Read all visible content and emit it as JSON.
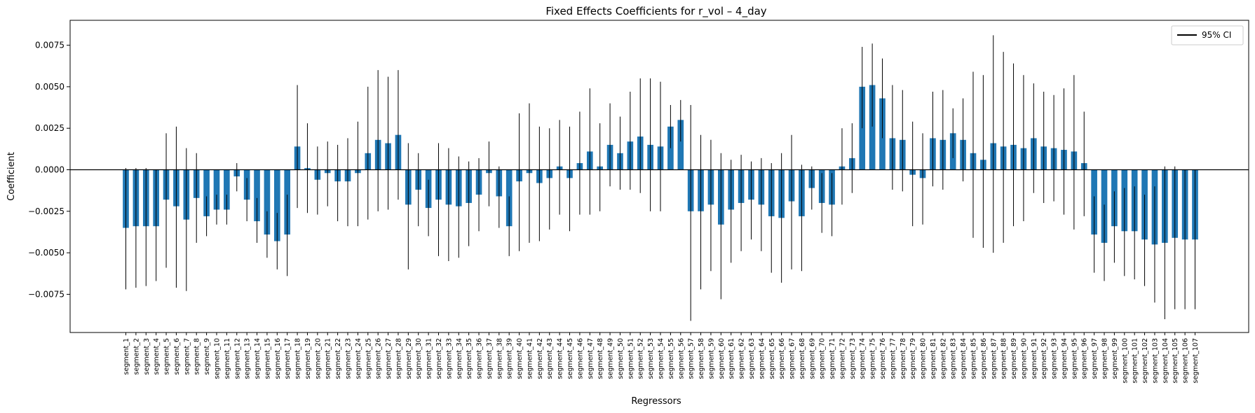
{
  "chart_data": {
    "type": "bar",
    "title": "Fixed Effects Coefficients for r_vol – 4_day",
    "xlabel": "Regressors",
    "ylabel": "Coefficient",
    "ylim": [
      -0.0098,
      0.009
    ],
    "yticks": [
      -0.0075,
      -0.005,
      -0.0025,
      0.0,
      0.0025,
      0.005,
      0.0075
    ],
    "ytick_labels": [
      "−0.0075",
      "−0.0050",
      "−0.0025",
      "0.0000",
      "0.0025",
      "0.0050",
      "0.0075"
    ],
    "legend": {
      "label": "95% CI",
      "position": "top-right"
    },
    "bar_color": "#1f77b4",
    "errorbar_color": "#000000",
    "grid": false,
    "categories": [
      "segment_1",
      "segment_2",
      "segment_3",
      "segment_4",
      "segment_5",
      "segment_6",
      "segment_7",
      "segment_8",
      "segment_9",
      "segment_10",
      "segment_11",
      "segment_12",
      "segment_13",
      "segment_14",
      "segment_15",
      "segment_16",
      "segment_17",
      "segment_18",
      "segment_19",
      "segment_20",
      "segment_21",
      "segment_22",
      "segment_23",
      "segment_24",
      "segment_25",
      "segment_26",
      "segment_27",
      "segment_28",
      "segment_29",
      "segment_30",
      "segment_31",
      "segment_32",
      "segment_33",
      "segment_34",
      "segment_35",
      "segment_36",
      "segment_37",
      "segment_38",
      "segment_39",
      "segment_40",
      "segment_41",
      "segment_42",
      "segment_43",
      "segment_44",
      "segment_45",
      "segment_46",
      "segment_47",
      "segment_48",
      "segment_49",
      "segment_50",
      "segment_51",
      "segment_52",
      "segment_53",
      "segment_54",
      "segment_55",
      "segment_56",
      "segment_57",
      "segment_58",
      "segment_59",
      "segment_60",
      "segment_61",
      "segment_62",
      "segment_63",
      "segment_64",
      "segment_65",
      "segment_66",
      "segment_67",
      "segment_68",
      "segment_69",
      "segment_70",
      "segment_71",
      "segment_72",
      "segment_73",
      "segment_74",
      "segment_75",
      "segment_76",
      "segment_77",
      "segment_78",
      "segment_79",
      "segment_80",
      "segment_81",
      "segment_82",
      "segment_83",
      "segment_84",
      "segment_85",
      "segment_86",
      "segment_87",
      "segment_88",
      "segment_89",
      "segment_90",
      "segment_91",
      "segment_92",
      "segment_93",
      "segment_94",
      "segment_95",
      "segment_96",
      "segment_97",
      "segment_98",
      "segment_99",
      "segment_100",
      "segment_101",
      "segment_102",
      "segment_103",
      "segment_104",
      "segment_105",
      "segment_106",
      "segment_107"
    ],
    "values": [
      -0.0035,
      -0.0034,
      -0.0034,
      -0.0034,
      -0.0018,
      -0.0022,
      -0.003,
      -0.0017,
      -0.0028,
      -0.0024,
      -0.0024,
      -0.0004,
      -0.0018,
      -0.0031,
      -0.0039,
      -0.0043,
      -0.0039,
      0.0014,
      0.0001,
      -0.0006,
      -0.0002,
      -0.0007,
      -0.0007,
      -0.0002,
      0.001,
      0.0018,
      0.0016,
      0.0021,
      -0.0021,
      -0.0012,
      -0.0023,
      -0.0018,
      -0.0021,
      -0.0022,
      -0.002,
      -0.0015,
      -0.0002,
      -0.0016,
      -0.0034,
      -0.0007,
      -0.0002,
      -0.0008,
      -0.0005,
      0.0002,
      -0.0005,
      0.0004,
      0.0011,
      0.0002,
      0.0015,
      0.001,
      0.0017,
      0.002,
      0.0015,
      0.0014,
      0.0026,
      0.003,
      -0.0025,
      -0.0025,
      -0.0021,
      -0.0033,
      -0.0024,
      -0.002,
      -0.0018,
      -0.0021,
      -0.0028,
      -0.0029,
      -0.0019,
      -0.0028,
      -0.0011,
      -0.002,
      -0.0021,
      0.0002,
      0.0007,
      0.005,
      0.0051,
      0.0043,
      0.0019,
      0.0018,
      -0.0003,
      -0.0005,
      0.0019,
      0.0018,
      0.0022,
      0.0018,
      0.001,
      0.0006,
      0.0016,
      0.0014,
      0.0015,
      0.0013,
      0.0019,
      0.0014,
      0.0013,
      0.0012,
      0.0011,
      0.0004,
      -0.0039,
      -0.0044,
      -0.0034,
      -0.0037,
      -0.0037,
      -0.0042,
      -0.0045,
      -0.0044,
      -0.0041,
      -0.0042,
      -0.0042
    ],
    "ci_low": [
      -0.0072,
      -0.0071,
      -0.007,
      -0.0067,
      -0.0059,
      -0.0071,
      -0.0073,
      -0.0044,
      -0.004,
      -0.0033,
      -0.0033,
      -0.0013,
      -0.0031,
      -0.0044,
      -0.0053,
      -0.006,
      -0.0064,
      -0.0023,
      -0.0026,
      -0.0027,
      -0.0022,
      -0.0031,
      -0.0034,
      -0.0034,
      -0.003,
      -0.0025,
      -0.0024,
      -0.0018,
      -0.006,
      -0.0034,
      -0.004,
      -0.0052,
      -0.0055,
      -0.0053,
      -0.0046,
      -0.0037,
      -0.0022,
      -0.0035,
      -0.0052,
      -0.0049,
      -0.0044,
      -0.0043,
      -0.0036,
      -0.0027,
      -0.0037,
      -0.0027,
      -0.0027,
      -0.0025,
      -0.001,
      -0.0012,
      -0.0012,
      -0.0014,
      -0.0025,
      -0.0025,
      0.0013,
      0.0017,
      -0.0091,
      -0.0072,
      -0.0061,
      -0.0078,
      -0.0056,
      -0.0049,
      -0.0042,
      -0.0049,
      -0.0062,
      -0.0068,
      -0.006,
      -0.0061,
      -0.0024,
      -0.0038,
      -0.004,
      -0.0021,
      -0.0014,
      0.0025,
      0.0026,
      0.0019,
      -0.0012,
      -0.0013,
      -0.0034,
      -0.0033,
      -0.001,
      -0.0012,
      0.0007,
      -0.0007,
      -0.0041,
      -0.0047,
      -0.005,
      -0.0044,
      -0.0034,
      -0.0031,
      -0.0014,
      -0.002,
      -0.0019,
      -0.0027,
      -0.0036,
      -0.0028,
      -0.0062,
      -0.0067,
      -0.0056,
      -0.0064,
      -0.0066,
      -0.007,
      -0.008,
      -0.009,
      -0.0084,
      -0.0084,
      -0.0084
    ],
    "ci_high": [
      0.0001,
      0.0001,
      0.0001,
      0.0,
      0.0022,
      0.0026,
      0.0013,
      0.001,
      -0.0016,
      -0.0015,
      -0.0015,
      0.0004,
      -0.0005,
      -0.0017,
      -0.0025,
      -0.0026,
      -0.0015,
      0.0051,
      0.0028,
      0.0014,
      0.0017,
      0.0015,
      0.0019,
      0.0029,
      0.005,
      0.006,
      0.0056,
      0.006,
      0.0016,
      0.001,
      -0.0006,
      0.0016,
      0.0013,
      0.0008,
      0.0005,
      0.0007,
      0.0017,
      0.0002,
      -0.0016,
      0.0034,
      0.004,
      0.0026,
      0.0025,
      0.003,
      0.0026,
      0.0035,
      0.0049,
      0.0028,
      0.004,
      0.0032,
      0.0047,
      0.0055,
      0.0055,
      0.0053,
      0.0039,
      0.0042,
      0.0039,
      0.0021,
      0.0018,
      0.001,
      0.0006,
      0.0009,
      0.0005,
      0.0007,
      0.0004,
      0.001,
      0.0021,
      0.0003,
      0.0002,
      -0.0002,
      -0.0002,
      0.0025,
      0.0028,
      0.0074,
      0.0076,
      0.0067,
      0.0051,
      0.0048,
      0.0029,
      0.0022,
      0.0047,
      0.0048,
      0.0037,
      0.0043,
      0.0059,
      0.0057,
      0.0081,
      0.0071,
      0.0064,
      0.0057,
      0.0052,
      0.0047,
      0.0045,
      0.0049,
      0.0057,
      0.0035,
      -0.0016,
      -0.0021,
      -0.0013,
      -0.0011,
      -0.001,
      -0.0015,
      -0.001,
      0.0002,
      0.0002,
      0.0,
      0.0
    ]
  }
}
